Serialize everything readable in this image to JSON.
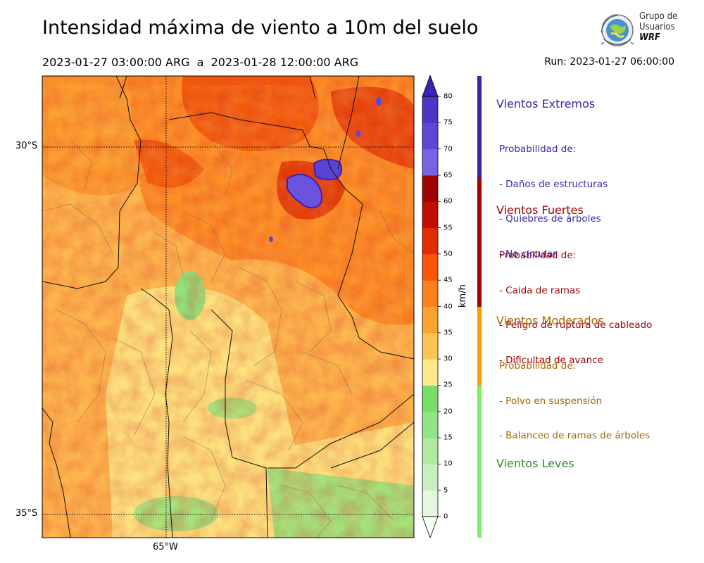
{
  "title": "Intensidad máxima de viento a 10m del suelo",
  "period": "2023-01-27 03:00:00 ARG  a  2023-01-28 12:00:00 ARG",
  "run": "Run: 2023-01-27 06:00:00",
  "logo": {
    "line1": "Grupo de",
    "line2": "Usuarios",
    "line3": "WRF",
    "icon": "globe-satellite-icon"
  },
  "map": {
    "lat_labels": [
      "30°S",
      "35°S"
    ],
    "lon_labels": [
      "65°W"
    ],
    "lat_range": [
      -35.3,
      -29.0
    ],
    "lon_range": [
      -66.7,
      -61.7
    ],
    "gridlines": "dotted"
  },
  "colorbar": {
    "unit": "km/h",
    "ticks": [
      "0",
      "5",
      "10",
      "15",
      "20",
      "25",
      "30",
      "35",
      "40",
      "45",
      "50",
      "55",
      "60",
      "65",
      "70",
      "75",
      "80"
    ],
    "colors": [
      "#fafffa",
      "#e4f8df",
      "#c8f0bf",
      "#aeea9f",
      "#92e486",
      "#79de68",
      "#fde88a",
      "#fdc453",
      "#fca22f",
      "#fd8219",
      "#fd5305",
      "#e52b00",
      "#c10e00",
      "#a00400",
      "#7564e4",
      "#5b48d7",
      "#4a37c7",
      "#3c22b0"
    ],
    "extend": "both"
  },
  "categories": [
    {
      "title": "Vientos Extremos",
      "color": "#3b24ad",
      "bar_color": "#3b24ad",
      "range_kmh": [
        65,
        80
      ],
      "lines": [
        "Probabilidad de:",
        "- Daños de estructuras",
        "- Quiebres de árboles",
        "- No circular"
      ]
    },
    {
      "title": "Vientos Fuertes",
      "color": "#a00000",
      "bar_color": "#a00000",
      "range_kmh": [
        40,
        65
      ],
      "lines": [
        "Probabilidad de:",
        "- Caida de ramas",
        "- Peligro de ruptura de cableado",
        "- Dificultad de avance"
      ]
    },
    {
      "title": "Vientos Moderados",
      "color": "#a86400",
      "bar_color": "#ff9a05",
      "range_kmh": [
        25,
        40
      ],
      "lines": [
        "Probabilidad de:",
        "- Polvo en suspensión",
        "- Balanceo de ramas de árboles"
      ]
    },
    {
      "title": "Vientos Leves",
      "color": "#2e8b2e",
      "bar_color": "#78f266",
      "range_kmh": [
        0,
        25
      ],
      "lines": []
    }
  ]
}
